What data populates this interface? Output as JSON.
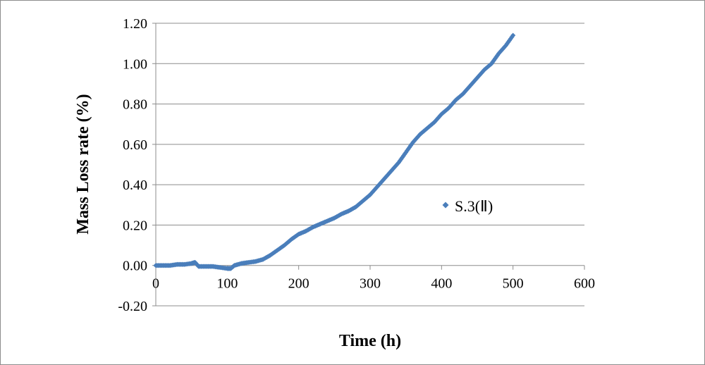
{
  "chart_data": {
    "type": "scatter",
    "title": "",
    "xlabel": "Time (h)",
    "ylabel": "Mass Loss rate (%)",
    "xlim": [
      0,
      600
    ],
    "ylim": [
      -0.2,
      1.2
    ],
    "x_ticks": [
      "0",
      "100",
      "200",
      "300",
      "400",
      "500",
      "600"
    ],
    "y_ticks": [
      "1.20",
      "1.00",
      "0.80",
      "0.60",
      "0.40",
      "0.20",
      "0.00",
      "-0.20"
    ],
    "grid": "horizontal",
    "legend_position": "right",
    "series": [
      {
        "name": "S.3(Ⅱ)",
        "color": "#4a7ebb",
        "marker": "diamond",
        "x": [
          0,
          10,
          20,
          30,
          40,
          50,
          55,
          60,
          70,
          80,
          90,
          100,
          105,
          110,
          120,
          130,
          140,
          150,
          160,
          170,
          180,
          190,
          200,
          210,
          220,
          230,
          240,
          250,
          260,
          270,
          280,
          290,
          300,
          310,
          320,
          330,
          340,
          350,
          360,
          370,
          380,
          390,
          400,
          410,
          420,
          430,
          440,
          450,
          460,
          470,
          480,
          490,
          500
        ],
        "y": [
          0.0,
          0.0,
          0.0,
          0.005,
          0.005,
          0.01,
          0.015,
          -0.005,
          -0.005,
          -0.005,
          -0.01,
          -0.015,
          -0.015,
          0.0,
          0.01,
          0.015,
          0.02,
          0.03,
          0.05,
          0.075,
          0.1,
          0.13,
          0.155,
          0.17,
          0.19,
          0.205,
          0.22,
          0.235,
          0.255,
          0.27,
          0.29,
          0.32,
          0.35,
          0.39,
          0.43,
          0.47,
          0.51,
          0.56,
          0.61,
          0.65,
          0.68,
          0.71,
          0.75,
          0.78,
          0.82,
          0.85,
          0.89,
          0.93,
          0.97,
          1.0,
          1.05,
          1.09,
          1.14
        ]
      }
    ]
  }
}
